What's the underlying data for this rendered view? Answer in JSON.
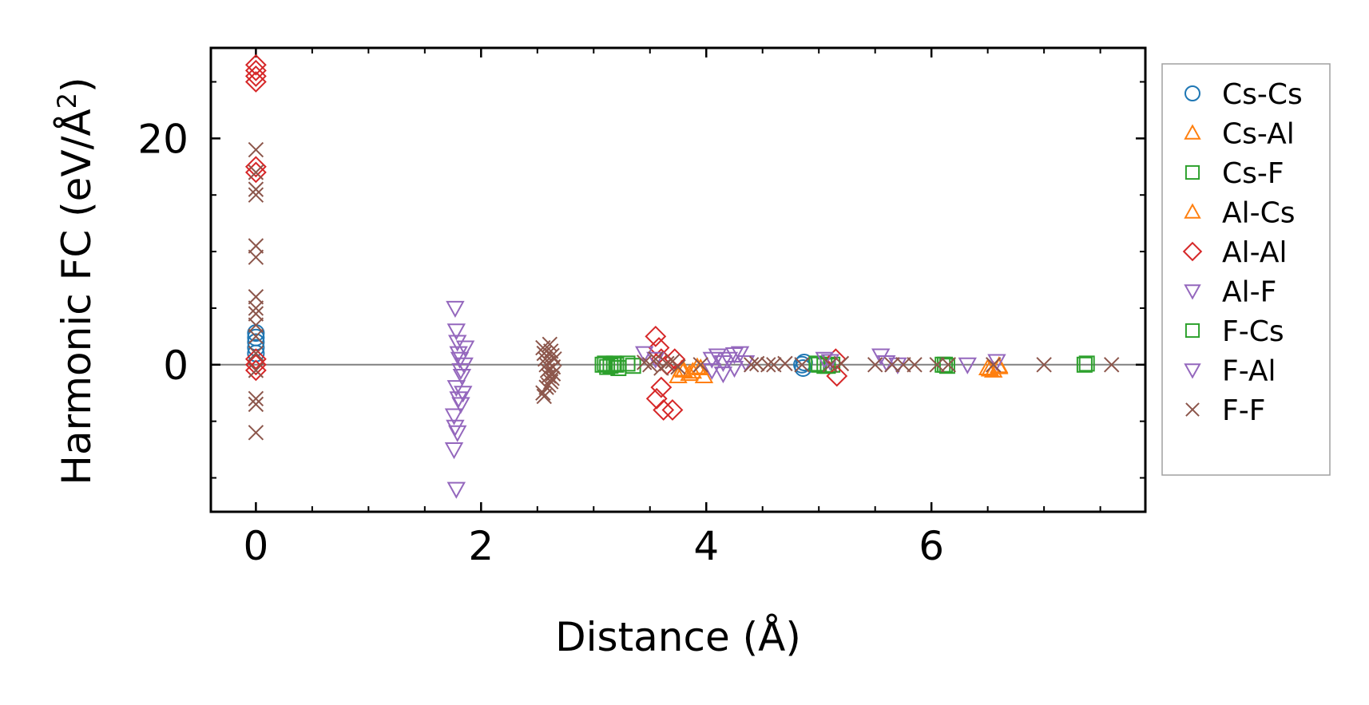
{
  "chart_data": {
    "type": "scatter",
    "title": "",
    "xlabel": "Distance (Å)",
    "ylabel": "Harmonic FC (eV/Å",
    "ylabel_superscript": "2",
    "ylabel_close": ")",
    "xlim": [
      -0.4,
      7.9
    ],
    "ylim": [
      -13,
      28
    ],
    "xticks": [
      0,
      2,
      4,
      6
    ],
    "xtick_labels": [
      "0",
      "2",
      "4",
      "6"
    ],
    "yticks": [
      0,
      20
    ],
    "ytick_labels": [
      "0",
      "20"
    ],
    "zero_line": true,
    "legend_position": "right",
    "series": [
      {
        "name": "Cs-Cs",
        "marker": "circle",
        "color": "#1f77b4",
        "x": [
          0,
          0,
          0,
          0,
          0,
          4.85,
          4.86,
          4.87
        ],
        "y": [
          1.0,
          1.5,
          2.0,
          2.4,
          2.8,
          0.0,
          -0.3,
          0.2
        ]
      },
      {
        "name": "Cs-Al",
        "marker": "triangle-up",
        "color": "#ff7f0e",
        "x": [
          3.75,
          3.8,
          3.85,
          3.95,
          3.98,
          6.5,
          6.55,
          6.6
        ],
        "y": [
          -1.0,
          -0.5,
          -0.8,
          -0.3,
          -1.0,
          -0.3,
          -0.5,
          -0.2
        ]
      },
      {
        "name": "Cs-F",
        "marker": "square",
        "color": "#2ca02c",
        "x": [
          3.08,
          3.12,
          3.18,
          3.22,
          3.35,
          4.98,
          5.05,
          5.12,
          6.1,
          6.14,
          7.36
        ],
        "y": [
          0.0,
          -0.2,
          0.1,
          -0.3,
          -0.1,
          0.1,
          -0.1,
          0.0,
          0.0,
          -0.1,
          0.0
        ]
      },
      {
        "name": "Al-Cs",
        "marker": "triangle-up",
        "color": "#ff7f0e",
        "x": [
          3.78,
          3.88,
          3.92,
          6.52,
          6.6
        ],
        "y": [
          -0.4,
          -0.6,
          -0.2,
          -0.4,
          -0.1
        ]
      },
      {
        "name": "Al-Al",
        "marker": "diamond",
        "color": "#d62728",
        "x": [
          0,
          0,
          0,
          0,
          0,
          0,
          0,
          0,
          0,
          3.55,
          3.58,
          3.6,
          3.6,
          3.56,
          3.62,
          3.65,
          3.7,
          3.72,
          5.15,
          5.16
        ],
        "y": [
          26.5,
          26.0,
          25.5,
          25.0,
          17.5,
          17.0,
          0.5,
          0.0,
          -0.5,
          2.5,
          1.5,
          0.5,
          -2.0,
          -3.0,
          -4.0,
          0.0,
          -4.0,
          0.5,
          0.5,
          -1.0
        ]
      },
      {
        "name": "Al-F",
        "marker": "triangle-down",
        "color": "#9467bd",
        "x": [
          1.77,
          1.78,
          1.79,
          1.8,
          1.81,
          1.82,
          1.83,
          1.85,
          1.86,
          1.78,
          1.8,
          1.76,
          1.77,
          1.79,
          1.82,
          1.84,
          1.76,
          1.78
        ],
        "y": [
          5.0,
          3.0,
          2.0,
          1.0,
          0.5,
          -0.5,
          -1.0,
          0.0,
          1.5,
          -2.0,
          -3.0,
          -4.5,
          -5.5,
          -6.0,
          -3.5,
          -2.5,
          -7.5,
          -11.0
        ]
      },
      {
        "name": "F-Cs",
        "marker": "square",
        "color": "#2ca02c",
        "x": [
          3.1,
          3.15,
          3.2,
          3.3,
          5.0,
          5.08,
          6.12,
          7.38
        ],
        "y": [
          0.1,
          -0.1,
          0.0,
          0.1,
          0.0,
          -0.1,
          0.0,
          0.1
        ]
      },
      {
        "name": "F-Al",
        "marker": "triangle-down",
        "color": "#9467bd",
        "x": [
          3.45,
          3.55,
          4.05,
          4.1,
          4.15,
          4.2,
          4.25,
          4.3,
          4.35,
          4.05,
          4.15,
          4.25,
          5.05,
          5.1,
          5.55,
          5.6,
          5.7,
          6.32,
          6.58
        ],
        "y": [
          1.0,
          0.5,
          0.5,
          0.8,
          0.2,
          0.5,
          0.9,
          1.0,
          0.2,
          -0.5,
          -0.8,
          -0.3,
          0.5,
          0.3,
          0.8,
          0.2,
          0.0,
          0.0,
          0.3
        ]
      },
      {
        "name": "F-F",
        "marker": "x",
        "color": "#8c564b",
        "x": [
          0,
          0,
          0,
          0,
          0,
          0,
          0,
          0,
          0,
          0,
          0,
          0,
          0,
          0,
          0,
          0,
          2.55,
          2.56,
          2.57,
          2.58,
          2.59,
          2.6,
          2.61,
          2.62,
          2.63,
          2.64,
          2.65,
          2.55,
          2.58,
          2.6,
          2.62,
          2.64,
          2.56,
          2.6,
          2.63,
          3.45,
          3.5,
          3.55,
          3.6,
          3.65,
          3.7,
          3.75,
          3.95,
          4.4,
          4.45,
          4.55,
          4.6,
          4.7,
          4.85,
          5.1,
          5.2,
          5.5,
          5.65,
          5.75,
          5.85,
          6.05,
          6.15,
          6.55,
          7.0,
          7.6
        ],
        "y": [
          19.0,
          17.0,
          15.5,
          15.0,
          10.5,
          9.5,
          6.0,
          5.0,
          4.5,
          3.5,
          2.5,
          1.0,
          -0.5,
          -3.0,
          -3.5,
          -6.0,
          1.5,
          1.0,
          0.5,
          0.0,
          -0.5,
          -1.0,
          1.8,
          -1.5,
          0.8,
          -0.2,
          0.5,
          -2.5,
          -2.0,
          -1.8,
          1.2,
          -0.8,
          -2.8,
          0.2,
          -1.2,
          0.2,
          0.0,
          0.5,
          -0.3,
          0.1,
          0.3,
          -0.2,
          0.0,
          0.0,
          0.1,
          0.0,
          0.0,
          0.1,
          0.0,
          0.0,
          0.1,
          0.0,
          0.0,
          0.0,
          0.0,
          0.0,
          0.0,
          0.0,
          0.0,
          0.0
        ]
      }
    ]
  }
}
